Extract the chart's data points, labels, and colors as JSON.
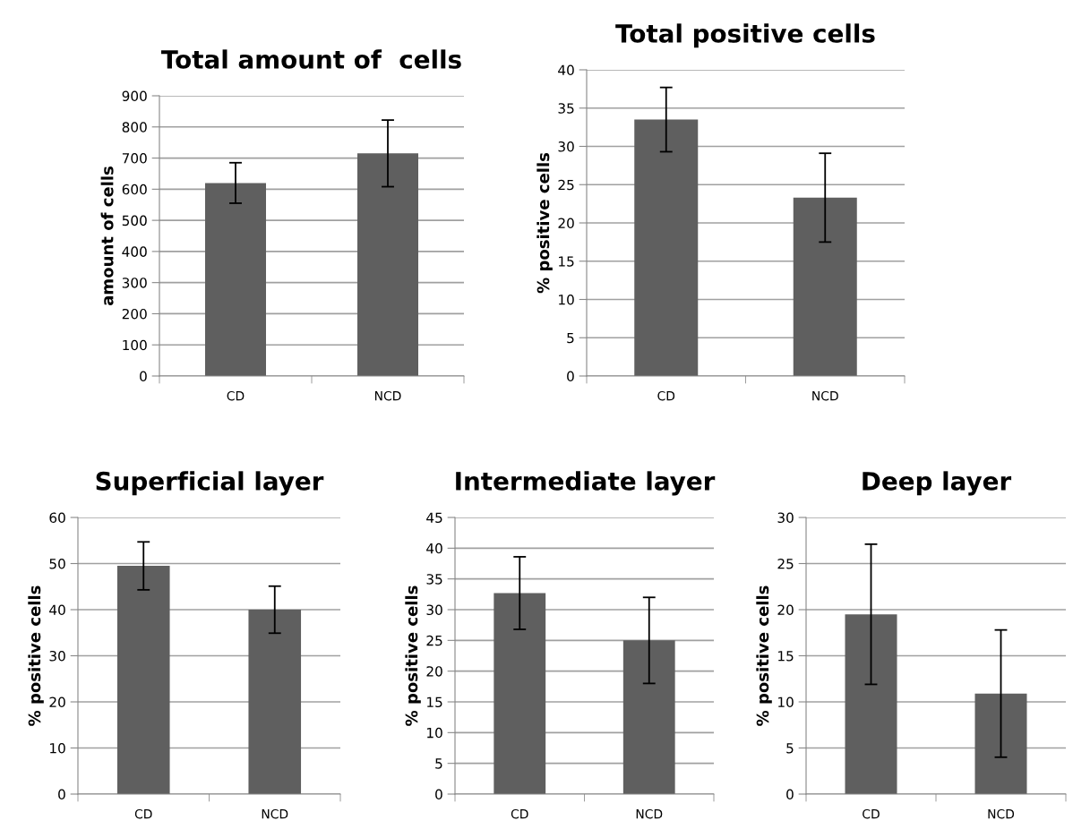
{
  "chart_data": [
    {
      "type": "bar",
      "title": "Total amount of  cells",
      "ylabel": "amount of cells",
      "categories": [
        "CD",
        "NCD"
      ],
      "values": [
        620,
        715
      ],
      "errors": [
        65,
        107
      ],
      "color": "#5f5f5f",
      "ylim": [
        0,
        900
      ],
      "yticks": [
        0,
        100,
        200,
        300,
        400,
        500,
        600,
        700,
        800,
        900
      ],
      "grid": "y"
    },
    {
      "type": "bar",
      "title": "Total positive cells",
      "ylabel": "% positive cells",
      "categories": [
        "CD",
        "NCD"
      ],
      "values": [
        33.5,
        23.3
      ],
      "errors": [
        4.2,
        5.8
      ],
      "color": "#5f5f5f",
      "ylim": [
        0,
        40
      ],
      "yticks": [
        0,
        5,
        10,
        15,
        20,
        25,
        30,
        35,
        40
      ],
      "grid": "y"
    },
    {
      "type": "bar",
      "title": "Superficial layer",
      "ylabel": "% positive cells",
      "categories": [
        "CD",
        "NCD"
      ],
      "values": [
        49.5,
        40
      ],
      "errors": [
        5.2,
        5.1
      ],
      "color": "#5f5f5f",
      "ylim": [
        0,
        60
      ],
      "yticks": [
        0,
        10,
        20,
        30,
        40,
        50,
        60
      ],
      "grid": "y"
    },
    {
      "type": "bar",
      "title": "Intermediate layer",
      "ylabel": "% positive cells",
      "categories": [
        "CD",
        "NCD"
      ],
      "values": [
        32.7,
        25
      ],
      "errors": [
        5.9,
        7
      ],
      "color": "#5f5f5f",
      "ylim": [
        0,
        45
      ],
      "yticks": [
        0,
        5,
        10,
        15,
        20,
        25,
        30,
        35,
        40,
        45
      ],
      "grid": "y"
    },
    {
      "type": "bar",
      "title": "Deep layer",
      "ylabel": "% positive cells",
      "categories": [
        "CD",
        "NCD"
      ],
      "values": [
        19.5,
        10.9
      ],
      "errors": [
        7.6,
        6.9
      ],
      "color": "#5f5f5f",
      "ylim": [
        0,
        30
      ],
      "yticks": [
        0,
        5,
        10,
        15,
        20,
        25,
        30
      ],
      "grid": "y"
    }
  ]
}
